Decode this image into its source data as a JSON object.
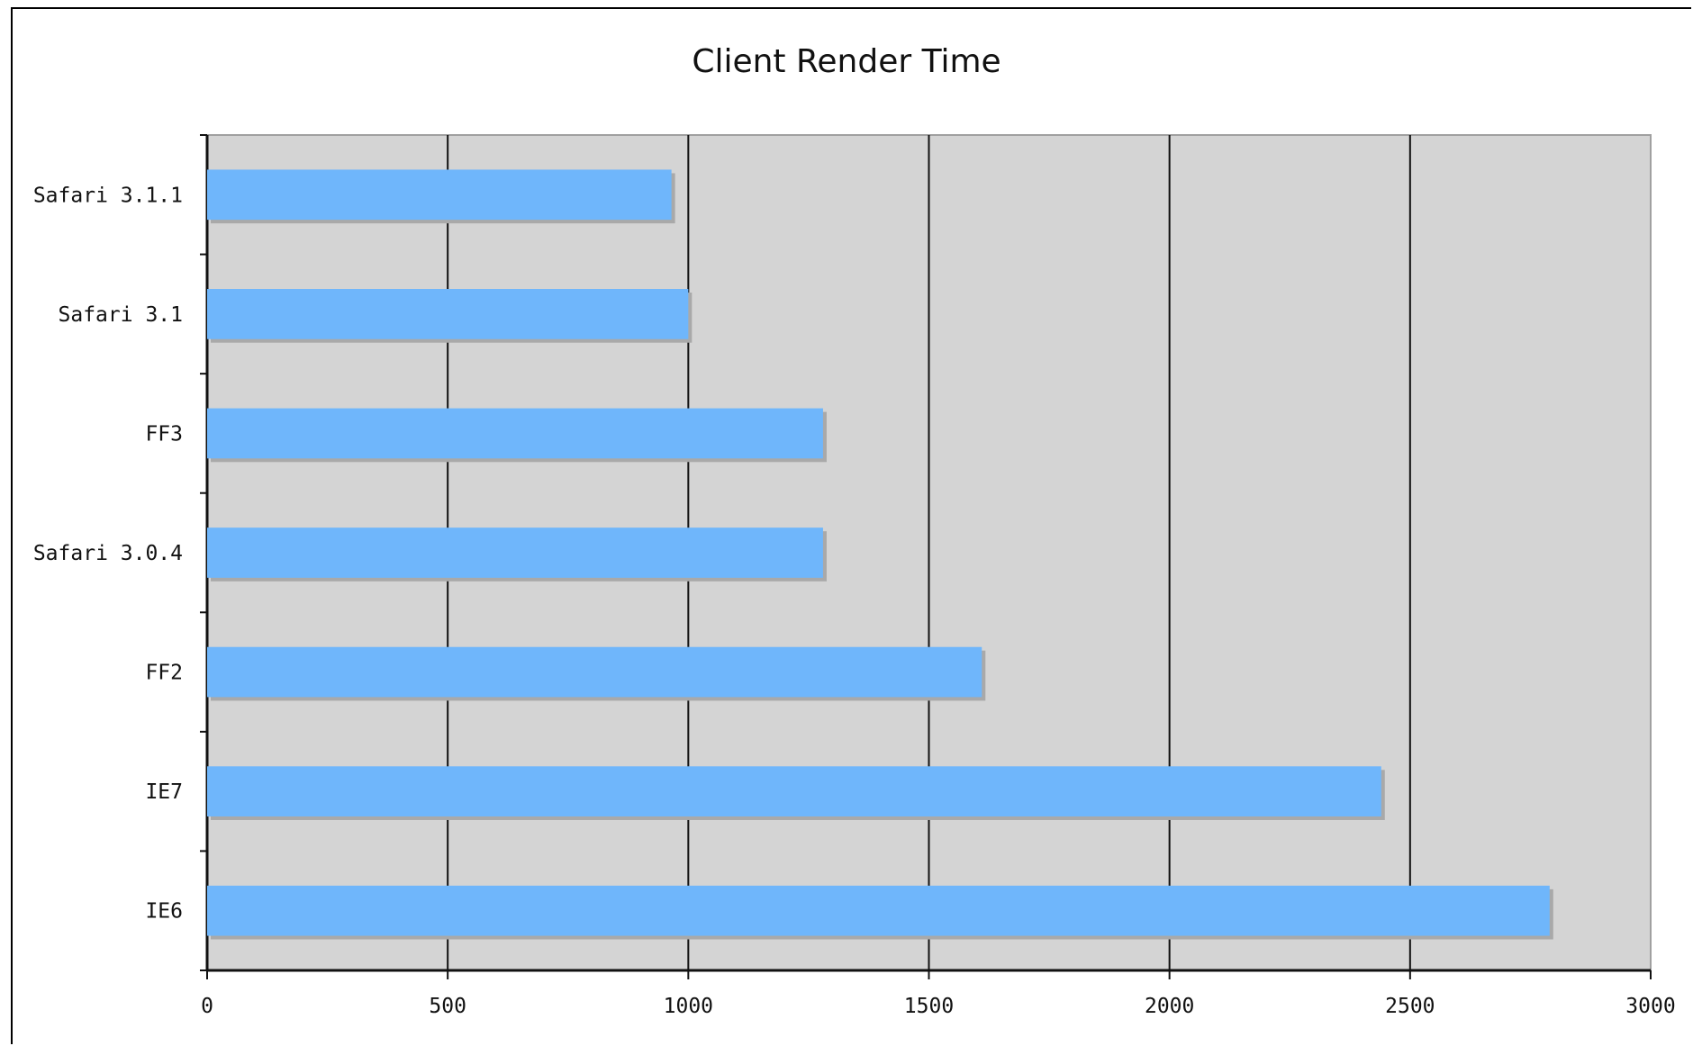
{
  "chart_data": {
    "type": "bar",
    "orientation": "horizontal",
    "title": "Client Render Time",
    "xlabel": "",
    "ylabel": "",
    "categories": [
      "Safari 3.1.1",
      "Safari 3.1",
      "FF3",
      "Safari 3.0.4",
      "FF2",
      "IE7",
      "IE6"
    ],
    "values": [
      965,
      1000,
      1280,
      1280,
      1610,
      2440,
      2790
    ],
    "xlim": [
      0,
      3000
    ],
    "xticks": [
      "0",
      "500",
      "1000",
      "1500",
      "2000",
      "2500",
      "3000"
    ],
    "grid": true,
    "legend": "none",
    "colors": {
      "bar": "#6fb6fb",
      "bar_shadow": "#a9a9a9",
      "plot_background": "#d4d4d4",
      "gridline": "#111111"
    }
  }
}
